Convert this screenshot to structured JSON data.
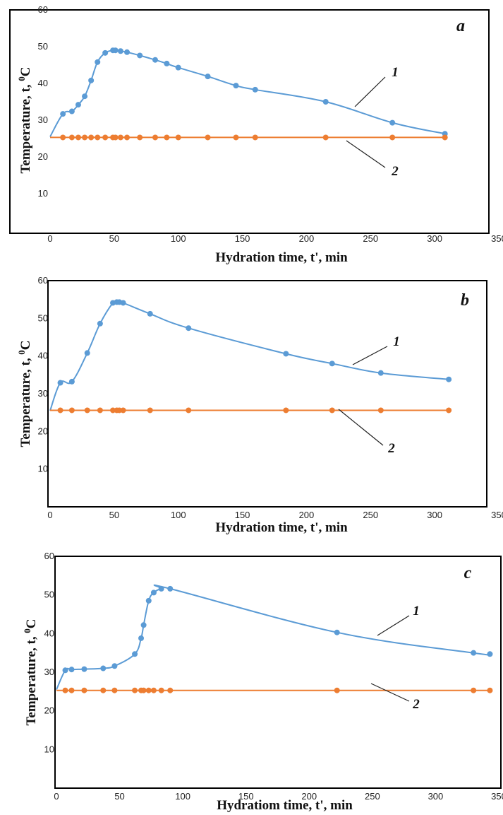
{
  "colors": {
    "series1": "#5b9bd5",
    "series2": "#ed7d31",
    "axis": "#000000"
  },
  "chart_data": [
    {
      "type": "line",
      "panel": "a",
      "xlabel": "Hydration time, t', min",
      "ylabel_parts": [
        "Temperature, t, ",
        "0",
        "C"
      ],
      "xlim": [
        0,
        350
      ],
      "ylim": [
        0,
        60
      ],
      "xticks": [
        "0",
        "50",
        "100",
        "150",
        "200",
        "250",
        "300",
        "350"
      ],
      "yticks": [
        "10",
        "20",
        "30",
        "40",
        "50",
        "60"
      ],
      "grid": false,
      "series": [
        {
          "name": "1",
          "x": [
            0,
            10,
            17,
            22,
            27,
            32,
            37,
            43,
            49,
            51,
            55,
            60,
            70,
            82,
            91,
            100,
            123,
            145,
            160,
            215,
            267,
            308
          ],
          "y": [
            25.5,
            31.7,
            32.4,
            34.2,
            36.5,
            40.8,
            45.8,
            48.3,
            49.0,
            49.0,
            48.8,
            48.5,
            47.6,
            46.4,
            45.4,
            44.3,
            41.9,
            39.4,
            38.3,
            35.0,
            29.3,
            26.3
          ]
        },
        {
          "name": "2",
          "x": [
            0,
            10,
            17,
            22,
            27,
            32,
            37,
            43,
            49,
            51,
            55,
            60,
            70,
            82,
            91,
            100,
            123,
            145,
            160,
            215,
            267,
            308
          ],
          "y": [
            25.3,
            25.3,
            25.3,
            25.3,
            25.3,
            25.3,
            25.3,
            25.3,
            25.3,
            25.3,
            25.3,
            25.3,
            25.3,
            25.3,
            25.3,
            25.3,
            25.3,
            25.3,
            25.3,
            25.3,
            25.3,
            25.3
          ]
        }
      ]
    },
    {
      "type": "line",
      "panel": "b",
      "xlabel": "Hydration time, t', min",
      "ylabel_parts": [
        "Temperature, t, ",
        "0",
        "C"
      ],
      "xlim": [
        0,
        350
      ],
      "ylim": [
        0,
        60
      ],
      "xticks": [
        "0",
        "50",
        "100",
        "150",
        "200",
        "250",
        "300",
        "350"
      ],
      "yticks": [
        "10",
        "20",
        "30",
        "40",
        "50",
        "60"
      ],
      "grid": false,
      "series": [
        {
          "name": "1",
          "x": [
            0,
            8,
            17,
            29,
            39,
            49,
            52,
            54,
            57,
            78,
            108,
            184,
            220,
            258,
            311
          ],
          "y": [
            25.5,
            32.9,
            33.2,
            40.8,
            48.6,
            54.1,
            54.3,
            54.3,
            54.1,
            51.2,
            47.4,
            40.6,
            38.0,
            35.5,
            33.8
          ]
        },
        {
          "name": "2",
          "x": [
            0,
            8,
            17,
            29,
            39,
            49,
            52,
            54,
            57,
            78,
            108,
            184,
            220,
            258,
            311
          ],
          "y": [
            25.6,
            25.6,
            25.6,
            25.6,
            25.6,
            25.6,
            25.6,
            25.6,
            25.6,
            25.6,
            25.6,
            25.6,
            25.6,
            25.6,
            25.6
          ]
        }
      ]
    },
    {
      "type": "line",
      "panel": "c",
      "xlabel": "Hydratiom time, t', min",
      "ylabel_parts": [
        "Temperature, t, ",
        "0",
        "C"
      ],
      "xlim": [
        0,
        350
      ],
      "ylim": [
        0,
        60
      ],
      "xticks": [
        "0",
        "50",
        "100",
        "150",
        "200",
        "250",
        "300",
        "350"
      ],
      "yticks": [
        "10",
        "20",
        "30",
        "40",
        "50",
        "60"
      ],
      "grid": false,
      "series": [
        {
          "name": "1",
          "x": [
            0,
            7,
            12,
            22,
            37,
            46,
            62,
            67,
            69,
            73,
            77,
            83,
            90,
            222,
            330,
            343
          ],
          "y": [
            25.5,
            30.5,
            30.7,
            30.8,
            31.0,
            31.6,
            34.7,
            38.8,
            42.2,
            48.5,
            50.6,
            51.6,
            51.6,
            40.3,
            35.0,
            34.7
          ]
        },
        {
          "name": "2",
          "x": [
            0,
            7,
            12,
            22,
            37,
            46,
            62,
            67,
            69,
            73,
            77,
            83,
            90,
            222,
            330,
            343
          ],
          "y": [
            25.3,
            25.3,
            25.3,
            25.3,
            25.3,
            25.3,
            25.3,
            25.3,
            25.3,
            25.3,
            25.3,
            25.3,
            25.3,
            25.3,
            25.3,
            25.3
          ]
        }
      ]
    }
  ]
}
